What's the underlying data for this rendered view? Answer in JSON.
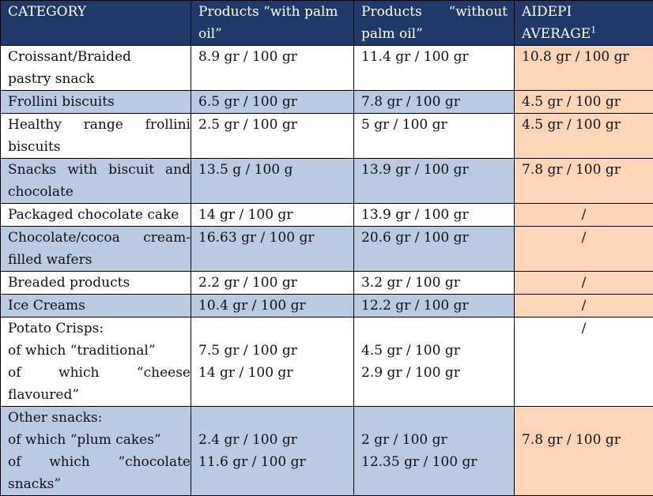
{
  "header": {
    "category": "CATEGORY",
    "with_line1": "Products “with palm",
    "with_line2": "oil”",
    "without_a": "Products",
    "without_b": "“without",
    "without_line2": "palm oil”",
    "aidepi_line1": "AIDEPI",
    "aidepi_line2": "AVERAGE",
    "aidepi_sup": "1"
  },
  "rows": [
    {
      "category_lines": [
        "Croissant/Braided",
        "pastry snack"
      ],
      "with": "8.9 gr / 100 gr",
      "without": "11.4 gr / 100 gr",
      "aidepi": "10.8 gr / 100 gr"
    },
    {
      "category_lines": [
        "Frollini biscuits"
      ],
      "with": "6.5 gr / 100 gr",
      "without": "7.8 gr / 100 gr",
      "aidepi": "4.5 gr / 100 gr"
    },
    {
      "category_lines": [
        "Healthy range frollini",
        "biscuits"
      ],
      "with": "2.5 gr / 100 gr",
      "without": "5 gr / 100 gr",
      "aidepi": "4.5 gr / 100 gr"
    },
    {
      "category_lines": [
        "Snacks with biscuit and",
        "chocolate"
      ],
      "with": "13.5 g / 100 g",
      "without": "13.9 gr / 100 gr",
      "aidepi": "7.8 gr / 100 gr"
    },
    {
      "category_lines": [
        "Packaged chocolate cake"
      ],
      "with": "14 gr / 100 gr",
      "without": "13.9 gr / 100 gr",
      "aidepi": "/"
    },
    {
      "category_lines": [
        "Chocolate/cocoa cream-",
        "filled wafers"
      ],
      "with": "16.63 gr / 100 gr",
      "without": "20.6 gr / 100 gr",
      "aidepi": "/"
    },
    {
      "category_lines": [
        "Breaded products"
      ],
      "with": "2.2 gr / 100 gr",
      "without": "3.2 gr / 100 gr",
      "aidepi": "/"
    },
    {
      "category_lines": [
        "Ice Creams"
      ],
      "with": "10.4 gr / 100 gr",
      "without": "12.2 gr / 100 gr",
      "aidepi": "/"
    },
    {
      "category_lines": [
        "Potato Crisps:",
        "of which “traditional”",
        "of which “cheese",
        "flavoured”"
      ],
      "with_lines": [
        "7.5 gr / 100 gr",
        "14 gr / 100 gr"
      ],
      "without_lines": [
        "4.5 gr / 100 gr",
        "2.9 gr / 100 gr"
      ],
      "aidepi": "/"
    },
    {
      "category_lines": [
        "Other snacks:",
        "of which “plum cakes”",
        "of which “chocolate",
        "snacks”"
      ],
      "with_lines": [
        "2.4 gr / 100 gr",
        "11.6 gr / 100 gr"
      ],
      "without_lines": [
        "2 gr / 100 gr",
        "12.35 gr / 100 gr"
      ],
      "aidepi": "7.8 gr / 100 gr"
    }
  ],
  "colors": {
    "header_bg": "#1f3a68",
    "row_blue": "#b9cbe3",
    "aidepi_bg": "#fbd5b5",
    "border": "#000000"
  }
}
